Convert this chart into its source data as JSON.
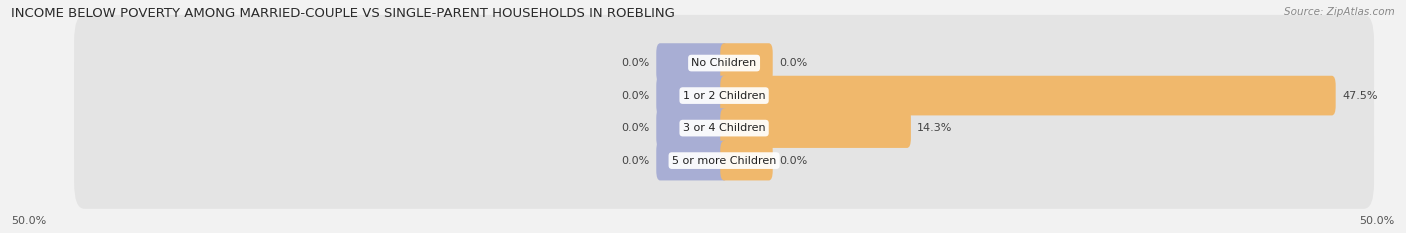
{
  "title": "INCOME BELOW POVERTY AMONG MARRIED-COUPLE VS SINGLE-PARENT HOUSEHOLDS IN ROEBLING",
  "source": "Source: ZipAtlas.com",
  "categories": [
    "No Children",
    "1 or 2 Children",
    "3 or 4 Children",
    "5 or more Children"
  ],
  "married_values": [
    0.0,
    0.0,
    0.0,
    0.0
  ],
  "single_values": [
    0.0,
    47.5,
    14.3,
    0.0
  ],
  "axis_min": -50.0,
  "axis_max": 50.0,
  "left_label": "50.0%",
  "right_label": "50.0%",
  "married_color": "#a8aed4",
  "single_color": "#f0b86c",
  "bg_color": "#f2f2f2",
  "row_bg_color": "#e4e4e4",
  "title_fontsize": 9.5,
  "source_fontsize": 7.5,
  "label_fontsize": 8,
  "value_fontsize": 8,
  "bar_height": 0.62,
  "min_bar_stub": 5.0,
  "min_single_stub": 3.5
}
